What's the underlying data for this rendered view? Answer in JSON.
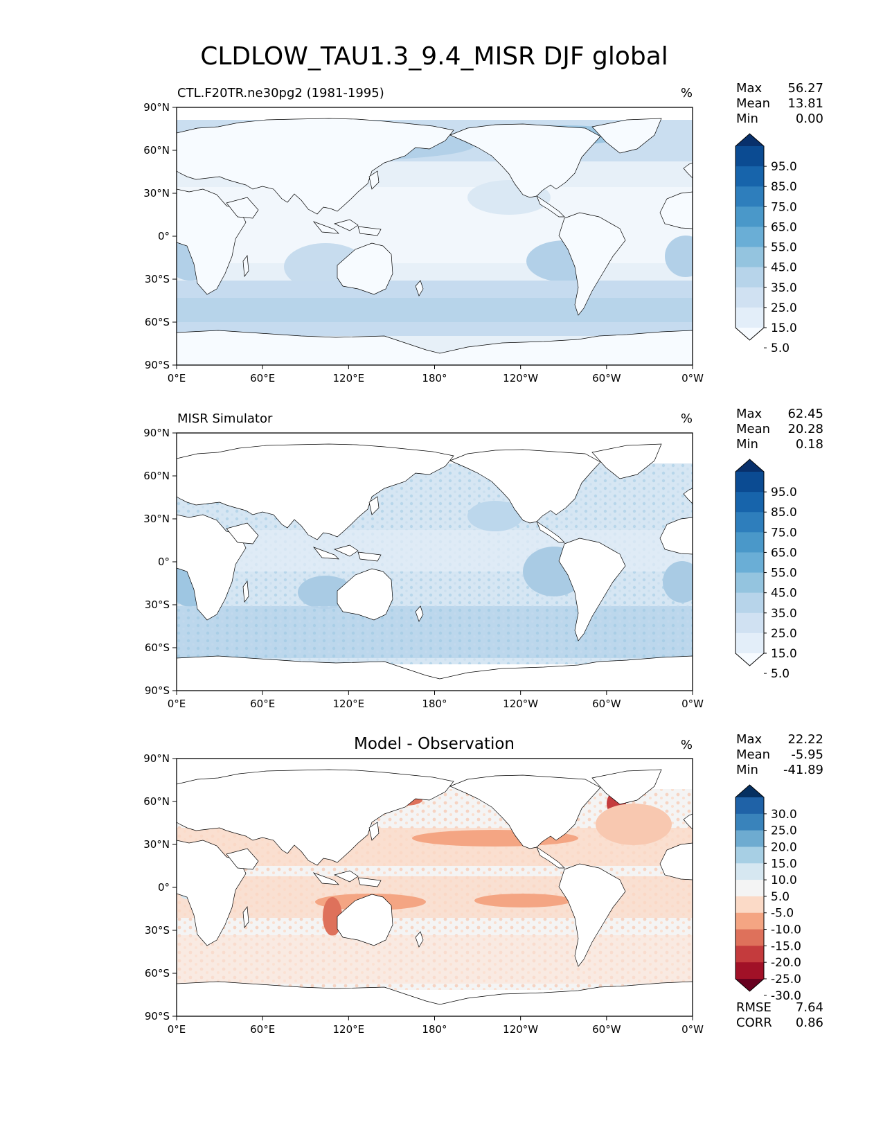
{
  "figure": {
    "title": "CLDLOW_TAU1.3_9.4_MISR DJF global"
  },
  "axes": {
    "lat_labels": [
      "90°N",
      "60°N",
      "30°N",
      "0°",
      "30°S",
      "60°S",
      "90°S"
    ],
    "lon_labels": [
      "0°E",
      "60°E",
      "120°E",
      "180°",
      "120°W",
      "60°W",
      "0°W"
    ]
  },
  "panels": [
    {
      "left_title": "CTL.F20TR.ne30pg2 (1981-1995)",
      "center_title": "",
      "units": "%",
      "stats": [
        {
          "label": "Max",
          "value": "56.27"
        },
        {
          "label": "Mean",
          "value": "13.81"
        },
        {
          "label": "Min",
          "value": "0.00"
        }
      ],
      "colorbar": {
        "labels": [
          "95.0",
          "85.0",
          "75.0",
          "65.0",
          "55.0",
          "45.0",
          "35.0",
          "25.0",
          "15.0",
          "5.0"
        ],
        "colors": [
          "#08306b",
          "#0b4b92",
          "#1764ab",
          "#2e7ebc",
          "#4a98c9",
          "#6aaed6",
          "#94c4df",
          "#b7d4ea",
          "#d0e1f2",
          "#e3eef9",
          "#f7fbff"
        ]
      }
    },
    {
      "left_title": "MISR Simulator",
      "center_title": "",
      "units": "%",
      "stats": [
        {
          "label": "Max",
          "value": "62.45"
        },
        {
          "label": "Mean",
          "value": "20.28"
        },
        {
          "label": "Min",
          "value": "0.18"
        }
      ],
      "colorbar": {
        "labels": [
          "95.0",
          "85.0",
          "75.0",
          "65.0",
          "55.0",
          "45.0",
          "35.0",
          "25.0",
          "15.0",
          "5.0"
        ],
        "colors": [
          "#08306b",
          "#0b4b92",
          "#1764ab",
          "#2e7ebc",
          "#4a98c9",
          "#6aaed6",
          "#94c4df",
          "#b7d4ea",
          "#d0e1f2",
          "#e3eef9",
          "#f7fbff"
        ]
      }
    },
    {
      "left_title": "",
      "center_title": "Model - Observation",
      "units": "%",
      "stats": [
        {
          "label": "Max",
          "value": "22.22"
        },
        {
          "label": "Mean",
          "value": "-5.95"
        },
        {
          "label": "Min",
          "value": "-41.89"
        }
      ],
      "extra_stats": [
        {
          "label": "RMSE",
          "value": "7.64"
        },
        {
          "label": "CORR",
          "value": "0.86"
        }
      ],
      "colorbar": {
        "labels": [
          "30.0",
          "25.0",
          "20.0",
          "15.0",
          "10.0",
          "5.0",
          "-5.0",
          "-10.0",
          "-15.0",
          "-20.0",
          "-25.0",
          "-30.0"
        ],
        "colors": [
          "#053061",
          "#1f62a7",
          "#3983bb",
          "#6eabd0",
          "#a7cfe4",
          "#d6e7f1",
          "#f4f4f4",
          "#fbdac7",
          "#f4a583",
          "#de715b",
          "#c43b3d",
          "#a11127",
          "#67001f"
        ]
      }
    }
  ]
}
